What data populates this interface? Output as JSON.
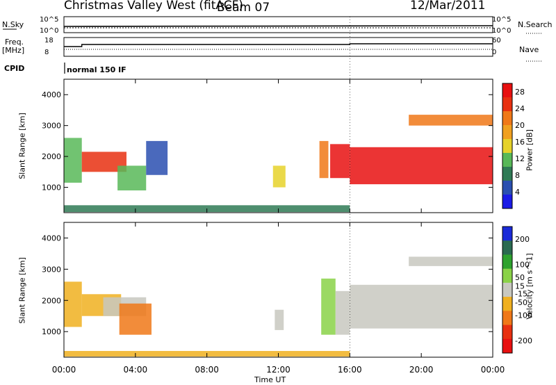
{
  "header": {
    "title": "Christmas Valley West (fitACF)",
    "beam": "Beam 07",
    "date": "12/Mar/2011"
  },
  "noise_panel": {
    "left_label": "N.Sky",
    "left_ticks": [
      "10^5",
      "10^0"
    ],
    "right_ticks": [
      "10^5",
      "10^0"
    ],
    "right_label": "N.Search"
  },
  "freq_panel": {
    "left_label_line1": "Freq.",
    "left_label_line2": "[MHz]",
    "left_ticks": [
      "18",
      "8"
    ],
    "right_ticks": [
      "60",
      "0"
    ],
    "right_label": "Nave"
  },
  "cpid": {
    "label": "CPID",
    "value": "normal 150 IF"
  },
  "x_axis": {
    "title": "Time UT",
    "ticks": [
      "00:00",
      "04:00",
      "08:00",
      "12:00",
      "16:00",
      "20:00",
      "00:00"
    ],
    "tick_hours": [
      0,
      4,
      8,
      12,
      16,
      20,
      24
    ]
  },
  "chart_data": [
    {
      "type": "heatmap",
      "title": "",
      "xlabel": "Time UT",
      "ylabel": "Slant Range [km]",
      "xlim_hours": [
        0,
        24
      ],
      "ylim": [
        180,
        4500
      ],
      "y_ticks": [
        1000,
        2000,
        3000,
        4000
      ],
      "y_tick_labels": [
        "1000",
        "2000",
        "3000",
        "4000"
      ],
      "colorbar": {
        "label": "Power [dB]",
        "range": [
          0,
          30
        ],
        "ticks": [
          4,
          8,
          12,
          16,
          20,
          24,
          28
        ],
        "tick_labels": [
          "4",
          "8",
          "12",
          "16",
          "20",
          "24",
          "28"
        ],
        "colors": [
          "#1a1ae6",
          "#2a4fb0",
          "#2f7a55",
          "#58b858",
          "#e6d22a",
          "#f0a020",
          "#f07818",
          "#e83010",
          "#e81010"
        ]
      },
      "regions": [
        {
          "t0": 0.0,
          "t1": 1.0,
          "r0": 1150,
          "r1": 2600,
          "value": 12
        },
        {
          "t0": 1.0,
          "t1": 3.5,
          "r0": 1500,
          "r1": 2150,
          "value": 24
        },
        {
          "t0": 3.0,
          "t1": 4.6,
          "r0": 900,
          "r1": 1700,
          "value": 10
        },
        {
          "t0": 4.6,
          "t1": 5.8,
          "r0": 1400,
          "r1": 2500,
          "value": 6
        },
        {
          "t0": 0.0,
          "t1": 16.0,
          "r0": 200,
          "r1": 420,
          "value": 8
        },
        {
          "t0": 11.7,
          "t1": 12.4,
          "r0": 1000,
          "r1": 1700,
          "value": 14
        },
        {
          "t0": 14.3,
          "t1": 14.8,
          "r0": 1300,
          "r1": 2500,
          "value": 20
        },
        {
          "t0": 14.9,
          "t1": 16.0,
          "r0": 1300,
          "r1": 2400,
          "value": 28
        },
        {
          "t0": 16.0,
          "t1": 24.0,
          "r0": 1100,
          "r1": 2300,
          "value": 29
        },
        {
          "t0": 19.3,
          "t1": 24.0,
          "r0": 3000,
          "r1": 3350,
          "value": 22
        }
      ]
    },
    {
      "type": "heatmap",
      "title": "",
      "xlabel": "Time UT",
      "ylabel": "Slant Range [km]",
      "xlim_hours": [
        0,
        24
      ],
      "ylim": [
        180,
        4500
      ],
      "y_ticks": [
        1000,
        2000,
        3000,
        4000
      ],
      "y_tick_labels": [
        "1000",
        "2000",
        "3000",
        "4000"
      ],
      "colorbar": {
        "label": "Velocity [m s^-1]",
        "range": [
          -250,
          250
        ],
        "ticks": [
          200,
          100,
          50,
          15,
          -15,
          -50,
          -100,
          -200
        ],
        "tick_labels": [
          "200",
          "100",
          "50",
          "15",
          "-15",
          "-50",
          "-100",
          "-200"
        ],
        "colors": [
          "#1a2ad8",
          "#2a6a50",
          "#2ea22e",
          "#8ad248",
          "#c8c8c0",
          "#f0b020",
          "#f07818",
          "#e83010",
          "#e81010"
        ]
      },
      "regions": [
        {
          "t0": 0.0,
          "t1": 1.0,
          "r0": 1150,
          "r1": 2600,
          "value": -30
        },
        {
          "t0": 1.0,
          "t1": 3.2,
          "r0": 1500,
          "r1": 2200,
          "value": -40
        },
        {
          "t0": 2.2,
          "t1": 4.6,
          "r0": 1500,
          "r1": 2100,
          "value": 0
        },
        {
          "t0": 3.1,
          "t1": 4.9,
          "r0": 900,
          "r1": 1900,
          "value": -110
        },
        {
          "t0": 0.0,
          "t1": 16.0,
          "r0": 200,
          "r1": 380,
          "value": -60
        },
        {
          "t0": 11.8,
          "t1": 12.3,
          "r0": 1050,
          "r1": 1700,
          "value": 0
        },
        {
          "t0": 14.4,
          "t1": 15.2,
          "r0": 900,
          "r1": 2700,
          "value": 40
        },
        {
          "t0": 15.2,
          "t1": 16.0,
          "r0": 900,
          "r1": 2300,
          "value": 10
        },
        {
          "t0": 16.0,
          "t1": 24.0,
          "r0": 1100,
          "r1": 2500,
          "value": 0
        },
        {
          "t0": 19.3,
          "t1": 24.0,
          "r0": 3100,
          "r1": 3400,
          "value": 0
        }
      ]
    }
  ]
}
